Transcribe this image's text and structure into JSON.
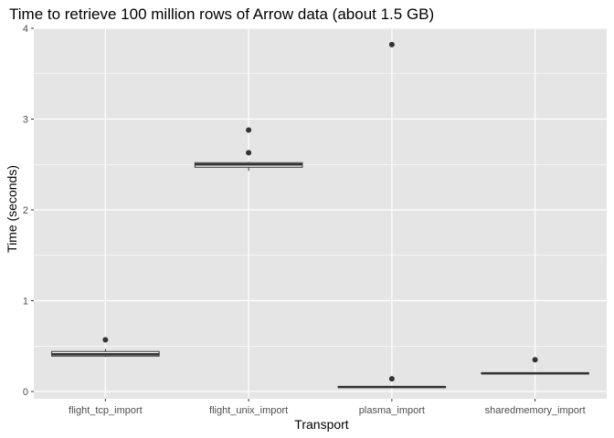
{
  "chart_data": {
    "type": "boxplot",
    "title": "Time to retrieve 100 million rows of Arrow data (about 1.5 GB)",
    "xlabel": "Transport",
    "ylabel": "Time (seconds)",
    "ylim": [
      -0.08,
      4.0
    ],
    "yticks": [
      0,
      1,
      2,
      3,
      4
    ],
    "grid": true,
    "categories": [
      "flight_tcp_import",
      "flight_unix_import",
      "plasma_import",
      "sharedmemory_import"
    ],
    "boxes": [
      {
        "category": "flight_tcp_import",
        "whisker_low": 0.38,
        "q1": 0.39,
        "median": 0.41,
        "q3": 0.44,
        "whisker_high": 0.47,
        "outliers": [
          0.57
        ]
      },
      {
        "category": "flight_unix_import",
        "whisker_low": 2.43,
        "q1": 2.47,
        "median": 2.5,
        "q3": 2.52,
        "whisker_high": 2.53,
        "outliers": [
          2.63,
          2.88
        ]
      },
      {
        "category": "plasma_import",
        "whisker_low": 0.05,
        "q1": 0.05,
        "median": 0.05,
        "q3": 0.055,
        "whisker_high": 0.06,
        "outliers": [
          0.14,
          3.82
        ]
      },
      {
        "category": "sharedmemory_import",
        "whisker_low": 0.2,
        "q1": 0.2,
        "median": 0.2,
        "q3": 0.205,
        "whisker_high": 0.21,
        "outliers": [
          0.35
        ]
      }
    ],
    "colors": {
      "panel": "#e5e5e5",
      "grid": "#ffffff",
      "box_fill": "#ffffff",
      "box_line": "#333333",
      "outlier": "#333333"
    }
  }
}
